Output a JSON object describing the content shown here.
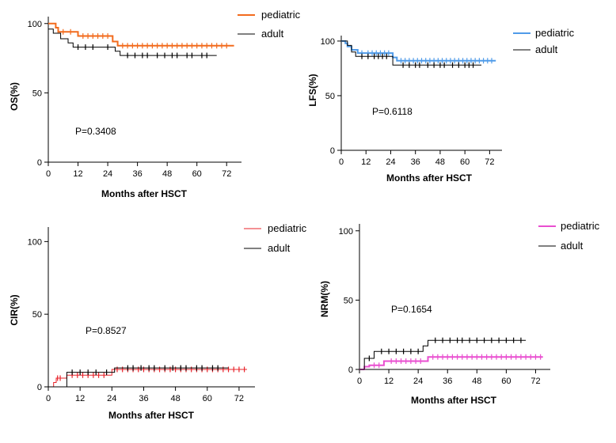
{
  "chart_data": [
    {
      "type": "line",
      "title": "",
      "xlabel": "Months after HSCT",
      "ylabel": "OS(%)",
      "xlim": [
        0,
        78
      ],
      "ylim": [
        0,
        105
      ],
      "xticks": [
        0,
        12,
        24,
        36,
        48,
        60,
        72
      ],
      "yticks": [
        0,
        50,
        100
      ],
      "annotation": "P=0.3408",
      "legend_position": "top-right",
      "series": [
        {
          "name": "pediatric",
          "color": "#f26b1d",
          "line_width": 2,
          "x": [
            0,
            3,
            3,
            4,
            4,
            12,
            12,
            26,
            26,
            28,
            28,
            75
          ],
          "y": [
            100,
            100,
            97,
            97,
            94,
            94,
            91,
            91,
            87,
            87,
            84,
            84
          ],
          "censor_x": [
            6,
            9,
            14,
            16,
            18,
            20,
            22,
            24,
            30,
            32,
            34,
            36,
            38,
            40,
            42,
            44,
            46,
            48,
            50,
            52,
            54,
            56,
            58,
            60,
            62,
            64,
            66,
            68,
            70,
            72
          ]
        },
        {
          "name": "adult",
          "color": "#000000",
          "line_width": 1,
          "x": [
            0,
            2,
            2,
            5,
            5,
            8,
            8,
            10,
            10,
            27,
            27,
            29,
            29,
            68
          ],
          "y": [
            96,
            96,
            93,
            93,
            89,
            89,
            86,
            86,
            83,
            83,
            80,
            80,
            77,
            77
          ],
          "censor_x": [
            12,
            15,
            18,
            24,
            32,
            35,
            38,
            40,
            44,
            47,
            50,
            52,
            56,
            58,
            62,
            64
          ]
        }
      ]
    },
    {
      "type": "line",
      "title": "",
      "xlabel": "Months after HSCT",
      "ylabel": "LFS(%)",
      "xlim": [
        0,
        78
      ],
      "ylim": [
        0,
        105
      ],
      "xticks": [
        0,
        12,
        24,
        36,
        48,
        60,
        72
      ],
      "yticks": [
        0,
        50,
        100
      ],
      "annotation": "P=0.6118",
      "legend_position": "top-right",
      "series": [
        {
          "name": "pediatric",
          "color": "#4f9be9",
          "line_width": 2,
          "x": [
            0,
            2,
            2,
            3,
            3,
            5,
            5,
            8,
            8,
            25,
            25,
            27,
            27,
            75
          ],
          "y": [
            100,
            100,
            98,
            98,
            95,
            95,
            92,
            92,
            89,
            89,
            85,
            85,
            82,
            82
          ],
          "censor_x": [
            10,
            13,
            15,
            17,
            19,
            21,
            23,
            29,
            31,
            33,
            35,
            37,
            39,
            41,
            43,
            45,
            47,
            49,
            51,
            53,
            55,
            57,
            59,
            61,
            63,
            65,
            67,
            69,
            71,
            73
          ]
        },
        {
          "name": "adult",
          "color": "#000000",
          "line_width": 1,
          "x": [
            0,
            3,
            3,
            5,
            5,
            7,
            7,
            25,
            25,
            68
          ],
          "y": [
            100,
            100,
            96,
            96,
            90,
            90,
            86,
            86,
            78,
            78
          ],
          "censor_x": [
            10,
            13,
            16,
            18,
            20,
            22,
            30,
            33,
            36,
            38,
            42,
            45,
            48,
            50,
            54,
            57,
            60,
            62,
            64
          ]
        }
      ]
    },
    {
      "type": "line",
      "title": "",
      "xlabel": "Months after HSCT",
      "ylabel": "CIR(%)",
      "xlim": [
        0,
        78
      ],
      "ylim": [
        0,
        110
      ],
      "xticks": [
        0,
        12,
        24,
        36,
        48,
        60,
        72
      ],
      "yticks": [
        0,
        50,
        100
      ],
      "annotation": "P=0.8527",
      "legend_position": "top-right",
      "series": [
        {
          "name": "pediatric",
          "color": "#e8232a",
          "line_width": 1,
          "x": [
            0,
            2,
            2,
            3,
            3,
            7,
            7,
            24,
            24,
            75
          ],
          "y": [
            0,
            0,
            3,
            3,
            6,
            6,
            8,
            8,
            12,
            12
          ],
          "censor_x": [
            3.5,
            4.5,
            9,
            11,
            13,
            15,
            17,
            19,
            21,
            26,
            28,
            30,
            32,
            34,
            36,
            38,
            40,
            42,
            44,
            46,
            48,
            50,
            52,
            54,
            56,
            58,
            60,
            62,
            64,
            66,
            68,
            70,
            72,
            74
          ]
        },
        {
          "name": "adult",
          "color": "#000000",
          "line_width": 1,
          "x": [
            0,
            7,
            7,
            25,
            25,
            68
          ],
          "y": [
            0,
            0,
            10,
            10,
            13,
            13
          ],
          "censor_x": [
            9,
            12,
            15,
            18,
            22,
            30,
            32,
            35,
            38,
            40,
            44,
            47,
            50,
            52,
            56,
            58,
            62,
            64
          ]
        }
      ]
    },
    {
      "type": "line",
      "title": "",
      "xlabel": "Months after HSCT",
      "ylabel": "NRM(%)",
      "xlim": [
        0,
        78
      ],
      "ylim": [
        0,
        105
      ],
      "xticks": [
        0,
        12,
        24,
        36,
        48,
        60,
        72
      ],
      "yticks": [
        0,
        50,
        100
      ],
      "annotation": "P=0.1654",
      "legend_position": "top-right",
      "series": [
        {
          "name": "pediatric",
          "color": "#e94fd0",
          "line_width": 2,
          "x": [
            0,
            2,
            2,
            4,
            4,
            10,
            10,
            28,
            28,
            75
          ],
          "y": [
            0,
            0,
            2,
            2,
            3,
            3,
            6,
            6,
            9,
            9
          ],
          "censor_x": [
            6,
            8,
            13,
            15,
            17,
            19,
            21,
            23,
            25,
            30,
            32,
            34,
            36,
            38,
            40,
            42,
            44,
            46,
            48,
            50,
            52,
            54,
            56,
            58,
            60,
            62,
            64,
            66,
            68,
            70,
            72,
            74
          ]
        },
        {
          "name": "adult",
          "color": "#000000",
          "line_width": 1,
          "x": [
            0,
            2,
            2,
            6,
            6,
            26,
            26,
            28,
            28,
            68
          ],
          "y": [
            0,
            0,
            8,
            8,
            13,
            13,
            17,
            17,
            21,
            21
          ],
          "censor_x": [
            4,
            9,
            12,
            15,
            18,
            21,
            24,
            31,
            34,
            37,
            40,
            42,
            45,
            48,
            51,
            54,
            57,
            60,
            63,
            66
          ]
        }
      ]
    }
  ]
}
